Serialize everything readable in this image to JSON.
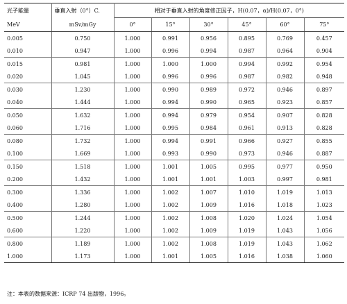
{
  "headers": {
    "energy": "光子能量",
    "normal": "垂直入射（0°）C.",
    "ratio": "相对于垂直入射的角度修正因子，H(0.07，α)/H(0.07，0°)",
    "energy_unit": "MeV",
    "normal_unit": "mSv/mGy",
    "angles": [
      "0°",
      "15°",
      "30°",
      "45°",
      "60°",
      "75°"
    ]
  },
  "rows": [
    {
      "e": "0.005",
      "c": "0.750",
      "r": [
        "1.000",
        "0.991",
        "0.956",
        "0.895",
        "0.769",
        "0.457"
      ]
    },
    {
      "e": "0.010",
      "c": "0.947",
      "r": [
        "1.000",
        "0.996",
        "0.994",
        "0.987",
        "0.964",
        "0.904"
      ]
    },
    {
      "e": "0.015",
      "c": "0.981",
      "r": [
        "1.000",
        "1.000",
        "1.000",
        "0.994",
        "0.992",
        "0.954"
      ]
    },
    {
      "e": "0.020",
      "c": "1.045",
      "r": [
        "1.000",
        "0.996",
        "0.996",
        "0.987",
        "0.982",
        "0.948"
      ]
    },
    {
      "e": "0.030",
      "c": "1.230",
      "r": [
        "1.000",
        "0.990",
        "0.989",
        "0.972",
        "0.946",
        "0.897"
      ]
    },
    {
      "e": "0.040",
      "c": "1.444",
      "r": [
        "1.000",
        "0.994",
        "0.990",
        "0.965",
        "0.923",
        "0.857"
      ]
    },
    {
      "e": "0.050",
      "c": "1.632",
      "r": [
        "1.000",
        "0.994",
        "0.979",
        "0.954",
        "0.907",
        "0.828"
      ]
    },
    {
      "e": "0.060",
      "c": "1.716",
      "r": [
        "1.000",
        "0.995",
        "0.984",
        "0.961",
        "0.913",
        "0.828"
      ]
    },
    {
      "e": "0.080",
      "c": "1.732",
      "r": [
        "1.000",
        "0.994",
        "0.991",
        "0.966",
        "0.927",
        "0.855"
      ]
    },
    {
      "e": "0.100",
      "c": "1.669",
      "r": [
        "1.000",
        "0.993",
        "0.990",
        "0.973",
        "0.946",
        "0.887"
      ]
    },
    {
      "e": "0.150",
      "c": "1.518",
      "r": [
        "1.000",
        "1.001",
        "1.005",
        "0.995",
        "0.977",
        "0.950"
      ]
    },
    {
      "e": "0.200",
      "c": "1.432",
      "r": [
        "1.000",
        "1.001",
        "1.001",
        "1.003",
        "0.997",
        "0.981"
      ]
    },
    {
      "e": "0.300",
      "c": "1.336",
      "r": [
        "1.000",
        "1.002",
        "1.007",
        "1.010",
        "1.019",
        "1.013"
      ]
    },
    {
      "e": "0.400",
      "c": "1.280",
      "r": [
        "1.000",
        "1.002",
        "1.009",
        "1.016",
        "1.018",
        "1.023"
      ]
    },
    {
      "e": "0.500",
      "c": "1.244",
      "r": [
        "1.000",
        "1.002",
        "1.008",
        "1.020",
        "1.024",
        "1.054"
      ]
    },
    {
      "e": "0.600",
      "c": "1.220",
      "r": [
        "1.000",
        "1.002",
        "1.009",
        "1.019",
        "1.043",
        "1.056"
      ]
    },
    {
      "e": "0.800",
      "c": "1.189",
      "r": [
        "1.000",
        "1.002",
        "1.008",
        "1.019",
        "1.043",
        "1.062"
      ]
    },
    {
      "e": "1.000",
      "c": "1.173",
      "r": [
        "1.000",
        "1.001",
        "1.005",
        "1.016",
        "1.038",
        "1.060"
      ]
    }
  ],
  "note": "注：本表的数据来源：ICRP 74 出版物，1996。"
}
